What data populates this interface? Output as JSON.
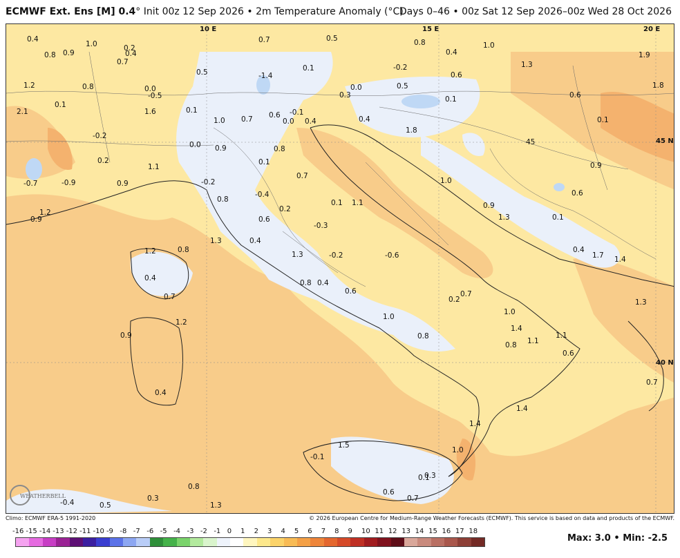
{
  "header": {
    "title_model": "ECMWF Ext.  Ens [M] 0.4",
    "title_rest": "° Init 00z 12 Sep 2026 • 2m Temperature Anomaly (°C)",
    "valid_range": "Days 0–46 • 00z Sat 12 Sep 2026–00z Wed 28 Oct 2026"
  },
  "map": {
    "coord_labels": [
      "10 E",
      "15 E",
      "20 E",
      "45 N",
      "40 N"
    ],
    "value_labels": [
      "0.4",
      "0.8",
      "0.9",
      "1.0",
      "0.2",
      "0.4",
      "0.7",
      "0.7",
      "0.5",
      "0.8",
      "0.4",
      "1.0",
      "-0.2",
      "0.6",
      "1.3",
      "1.9",
      "1.2",
      "0.8",
      "0.0",
      "-0.5",
      "0.5",
      "-1.4",
      "0.1",
      "0.0",
      "0.3",
      "0.5",
      "0.1",
      "0.6",
      "1.8",
      "2.1",
      "0.1",
      "1.6",
      "0.1",
      "1.0",
      "0.7",
      "0.6",
      "-0.1",
      "0.0",
      "0.4",
      "0.4",
      "1.8",
      "0.1",
      "-0.2",
      "0.2",
      "0.0",
      "0.9",
      "0.8",
      "45",
      "0.1",
      "0.9",
      "-0.7",
      "-0.9",
      "0.9",
      "1.1",
      "-0.2",
      "0.7",
      "1.0",
      "0.6",
      "0.1",
      "1.2",
      "0.9",
      "0.8",
      "-0.4",
      "1.1",
      "0.2",
      "0.6",
      "-0.3",
      "0.9",
      "1.3",
      "0.1",
      "1.3",
      "0.8",
      "1.2",
      "0.4",
      "1.3",
      "-0.2",
      "0.4",
      "1.7",
      "1.4",
      "-0.6",
      "0.4",
      "0.7",
      "0.8",
      "0.4",
      "0.6",
      "0.2",
      "0.7",
      "1.0",
      "1.3",
      "1.2",
      "0.9",
      "1.0",
      "0.8",
      "1.4",
      "1.1",
      "0.8",
      "1.1",
      "0.6",
      "0.4",
      "1.4",
      "1.4",
      "0.7",
      "1.5",
      "1.0",
      "-0.1",
      "0.1",
      "0.3",
      "0.6",
      "0.7",
      "-0.4",
      "0.5",
      "0.3",
      "0.8",
      "1.3"
    ],
    "logo_text": "WEATHERBELL"
  },
  "credits": {
    "left": "Climo: ECMWF ERA-5 1991-2020",
    "right": "© 2026 European Centre for Medium-Range Weather Forecasts (ECMWF). This service is based on data and products of the ECMWF."
  },
  "legend": {
    "ticks": [
      "-16",
      "-15",
      "-14",
      "-13",
      "-12",
      "-11",
      "-10",
      "-9",
      "-8",
      "-7",
      "-6",
      "-5",
      "-4",
      "-3",
      "-2",
      "-1",
      "0",
      "1",
      "2",
      "3",
      "4",
      "5",
      "6",
      "7",
      "8",
      "9",
      "10",
      "11",
      "12",
      "13",
      "14",
      "15",
      "16",
      "17",
      "18"
    ],
    "colors": [
      "#f5a3f0",
      "#e56be0",
      "#c73ec4",
      "#9a2294",
      "#5e1075",
      "#3b1fa0",
      "#3a3ed0",
      "#5c73e8",
      "#8da7f2",
      "#b9cdf7",
      "#2f8f3a",
      "#45b24a",
      "#7ad36b",
      "#b3ea9e",
      "#d9f4cc",
      "#eef3fb",
      "#ffffff",
      "#fff6bf",
      "#fde88c",
      "#fbd36a",
      "#f8bb55",
      "#f4a046",
      "#ee853a",
      "#e4672f",
      "#d54a29",
      "#bf3024",
      "#a11c1f",
      "#80121d",
      "#5e0d18",
      "#d9a79a",
      "#c98a7d",
      "#b96f63",
      "#a9574c",
      "#8d3f37",
      "#732a25"
    ],
    "max_min": "Max: 3.0 • Min: -2.5"
  }
}
